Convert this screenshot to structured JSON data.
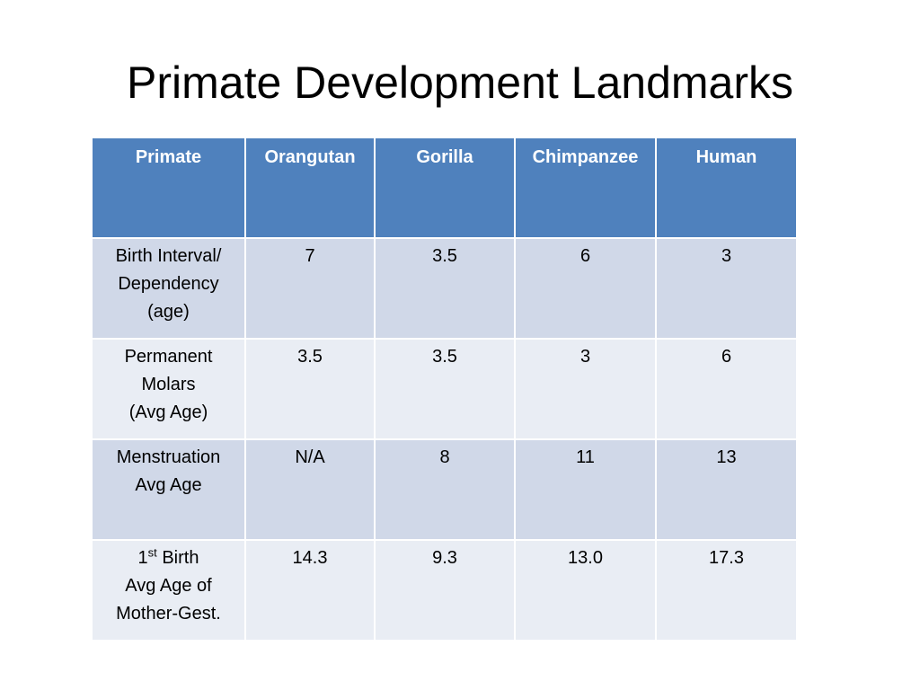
{
  "title": "Primate Development Landmarks",
  "table": {
    "header": [
      "Primate",
      "Orangutan",
      "Gorilla",
      "Chimpanzee",
      "Human"
    ],
    "rows": [
      {
        "label": [
          "Birth Interval/",
          "Dependency",
          "(age)"
        ],
        "values": [
          "7",
          "3.5",
          "6",
          "3"
        ]
      },
      {
        "label": [
          "Permanent",
          "Molars",
          "(Avg Age)"
        ],
        "values": [
          "3.5",
          "3.5",
          "3",
          "6"
        ]
      },
      {
        "label": [
          "Menstruation",
          "Avg Age"
        ],
        "values": [
          "N/A",
          "8",
          "11",
          "13"
        ]
      },
      {
        "label": [
          [
            "1",
            "st",
            " Birth"
          ],
          "Avg Age of",
          "Mother-Gest."
        ],
        "values": [
          "14.3",
          "9.3",
          "13.0",
          "17.3"
        ]
      }
    ]
  }
}
